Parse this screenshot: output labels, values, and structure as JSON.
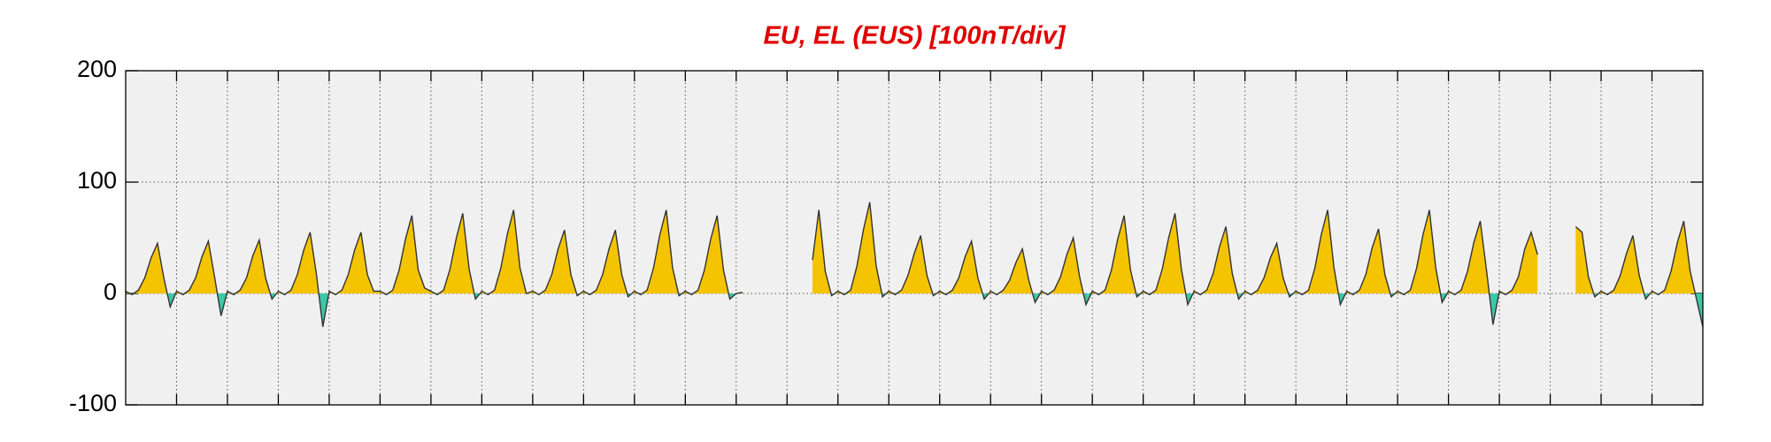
{
  "chart_data": {
    "type": "area",
    "title": "EU, EL (EUS)  [100nT/div]",
    "title_color": "#e00000",
    "positive_color": "#f5c400",
    "negative_color": "#3cc8a8",
    "line_color": "#333333",
    "background": "#f0f0f0",
    "grid": true,
    "xlim": [
      0,
      31
    ],
    "xticks": [
      1,
      2,
      3,
      4,
      5,
      6,
      7,
      8,
      9,
      10,
      11,
      12,
      13,
      14,
      15,
      16,
      17,
      18,
      19,
      20,
      21,
      22,
      23,
      24,
      25,
      26,
      27,
      28,
      29,
      30
    ],
    "ylim": [
      -100,
      200
    ],
    "yticks": [
      -100,
      0,
      100,
      200
    ],
    "x": [
      0,
      0.125,
      0.25,
      0.375,
      0.5,
      0.625,
      0.75,
      0.875,
      1,
      1.125,
      1.25,
      1.375,
      1.5,
      1.625,
      1.75,
      1.875,
      2,
      2.125,
      2.25,
      2.375,
      2.5,
      2.625,
      2.75,
      2.875,
      3,
      3.125,
      3.25,
      3.375,
      3.5,
      3.625,
      3.75,
      3.875,
      4,
      4.125,
      4.25,
      4.375,
      4.5,
      4.625,
      4.75,
      4.875,
      5,
      5.125,
      5.25,
      5.375,
      5.5,
      5.625,
      5.75,
      5.875,
      6,
      6.125,
      6.25,
      6.375,
      6.5,
      6.625,
      6.75,
      6.875,
      7,
      7.125,
      7.25,
      7.375,
      7.5,
      7.625,
      7.75,
      7.875,
      8,
      8.125,
      8.25,
      8.375,
      8.5,
      8.625,
      8.75,
      8.875,
      9,
      9.125,
      9.25,
      9.375,
      9.5,
      9.625,
      9.75,
      9.875,
      10,
      10.125,
      10.25,
      10.375,
      10.5,
      10.625,
      10.75,
      10.875,
      11,
      11.125,
      11.25,
      11.375,
      11.5,
      11.625,
      11.75,
      11.875,
      12,
      12.125,
      12.25,
      12.375,
      12.5,
      12.625,
      12.75,
      12.875,
      13,
      13.125,
      13.25,
      13.375,
      13.5,
      13.625,
      13.75,
      13.875,
      14,
      14.125,
      14.25,
      14.375,
      14.5,
      14.625,
      14.75,
      14.875,
      15,
      15.125,
      15.25,
      15.375,
      15.5,
      15.625,
      15.75,
      15.875,
      16,
      16.125,
      16.25,
      16.375,
      16.5,
      16.625,
      16.75,
      16.875,
      17,
      17.125,
      17.25,
      17.375,
      17.5,
      17.625,
      17.75,
      17.875,
      18,
      18.125,
      18.25,
      18.375,
      18.5,
      18.625,
      18.75,
      18.875,
      19,
      19.125,
      19.25,
      19.375,
      19.5,
      19.625,
      19.75,
      19.875,
      20,
      20.125,
      20.25,
      20.375,
      20.5,
      20.625,
      20.75,
      20.875,
      21,
      21.125,
      21.25,
      21.375,
      21.5,
      21.625,
      21.75,
      21.875,
      22,
      22.125,
      22.25,
      22.375,
      22.5,
      22.625,
      22.75,
      22.875,
      23,
      23.125,
      23.25,
      23.375,
      23.5,
      23.625,
      23.75,
      23.875,
      24,
      24.125,
      24.25,
      24.375,
      24.5,
      24.625,
      24.75,
      24.875,
      25,
      25.125,
      25.25,
      25.375,
      25.5,
      25.625,
      25.75,
      25.875,
      26,
      26.125,
      26.25,
      26.375,
      26.5,
      26.625,
      26.75,
      26.875,
      27,
      27.125,
      27.25,
      27.375,
      27.5,
      27.625,
      27.75,
      27.875,
      28,
      28.125,
      28.25,
      28.375,
      28.5,
      28.625,
      28.75,
      28.875,
      29,
      29.125,
      29.25,
      29.375,
      29.5,
      29.625,
      29.75,
      29.875,
      30,
      30.125,
      30.25,
      30.375,
      30.5,
      30.625,
      30.75,
      30.875,
      31
    ],
    "values": [
      2,
      -1,
      3,
      14,
      32,
      45,
      14,
      -12,
      2,
      -1,
      3,
      14,
      33,
      47,
      14,
      -20,
      2,
      -1,
      3,
      14,
      34,
      48,
      14,
      -5,
      2,
      -1,
      3,
      17,
      39,
      55,
      17,
      -30,
      2,
      -1,
      3,
      17,
      39,
      55,
      17,
      2,
      2,
      -1,
      3,
      21,
      49,
      70,
      21,
      5,
      2,
      -1,
      3,
      22,
      50,
      72,
      22,
      -5,
      2,
      -1,
      3,
      23,
      53,
      75,
      23,
      0,
      2,
      -1,
      3,
      17,
      40,
      57,
      17,
      -2,
      2,
      -1,
      3,
      17,
      40,
      57,
      17,
      -3,
      2,
      -1,
      3,
      23,
      53,
      75,
      23,
      -2,
      2,
      -1,
      3,
      21,
      49,
      70,
      21,
      -5,
      0,
      1,
      null,
      null,
      null,
      null,
      null,
      null,
      null,
      null,
      null,
      null,
      30,
      75,
      20,
      -2,
      2,
      -1,
      3,
      25,
      57,
      82,
      25,
      -3,
      2,
      -1,
      3,
      16,
      36,
      52,
      16,
      -2,
      2,
      -1,
      3,
      14,
      33,
      47,
      14,
      -5,
      2,
      -1,
      3,
      12,
      28,
      40,
      12,
      -8,
      2,
      -1,
      3,
      15,
      35,
      50,
      15,
      -10,
      2,
      -1,
      3,
      21,
      49,
      70,
      21,
      -3,
      2,
      -1,
      3,
      22,
      50,
      72,
      22,
      -10,
      2,
      -1,
      3,
      18,
      42,
      60,
      18,
      -5,
      2,
      -1,
      3,
      14,
      32,
      45,
      14,
      -3,
      2,
      -1,
      3,
      23,
      53,
      75,
      23,
      -10,
      2,
      -1,
      3,
      17,
      41,
      58,
      17,
      -3,
      2,
      -1,
      3,
      23,
      53,
      75,
      23,
      -8,
      2,
      -1,
      3,
      20,
      46,
      65,
      20,
      -28,
      2,
      -1,
      3,
      15,
      40,
      55,
      35,
      null,
      null,
      null,
      null,
      null,
      60,
      55,
      15,
      -3,
      2,
      -1,
      3,
      16,
      36,
      52,
      16,
      -5,
      2,
      -1,
      3,
      20,
      46,
      65,
      20,
      -5,
      -30
    ]
  }
}
